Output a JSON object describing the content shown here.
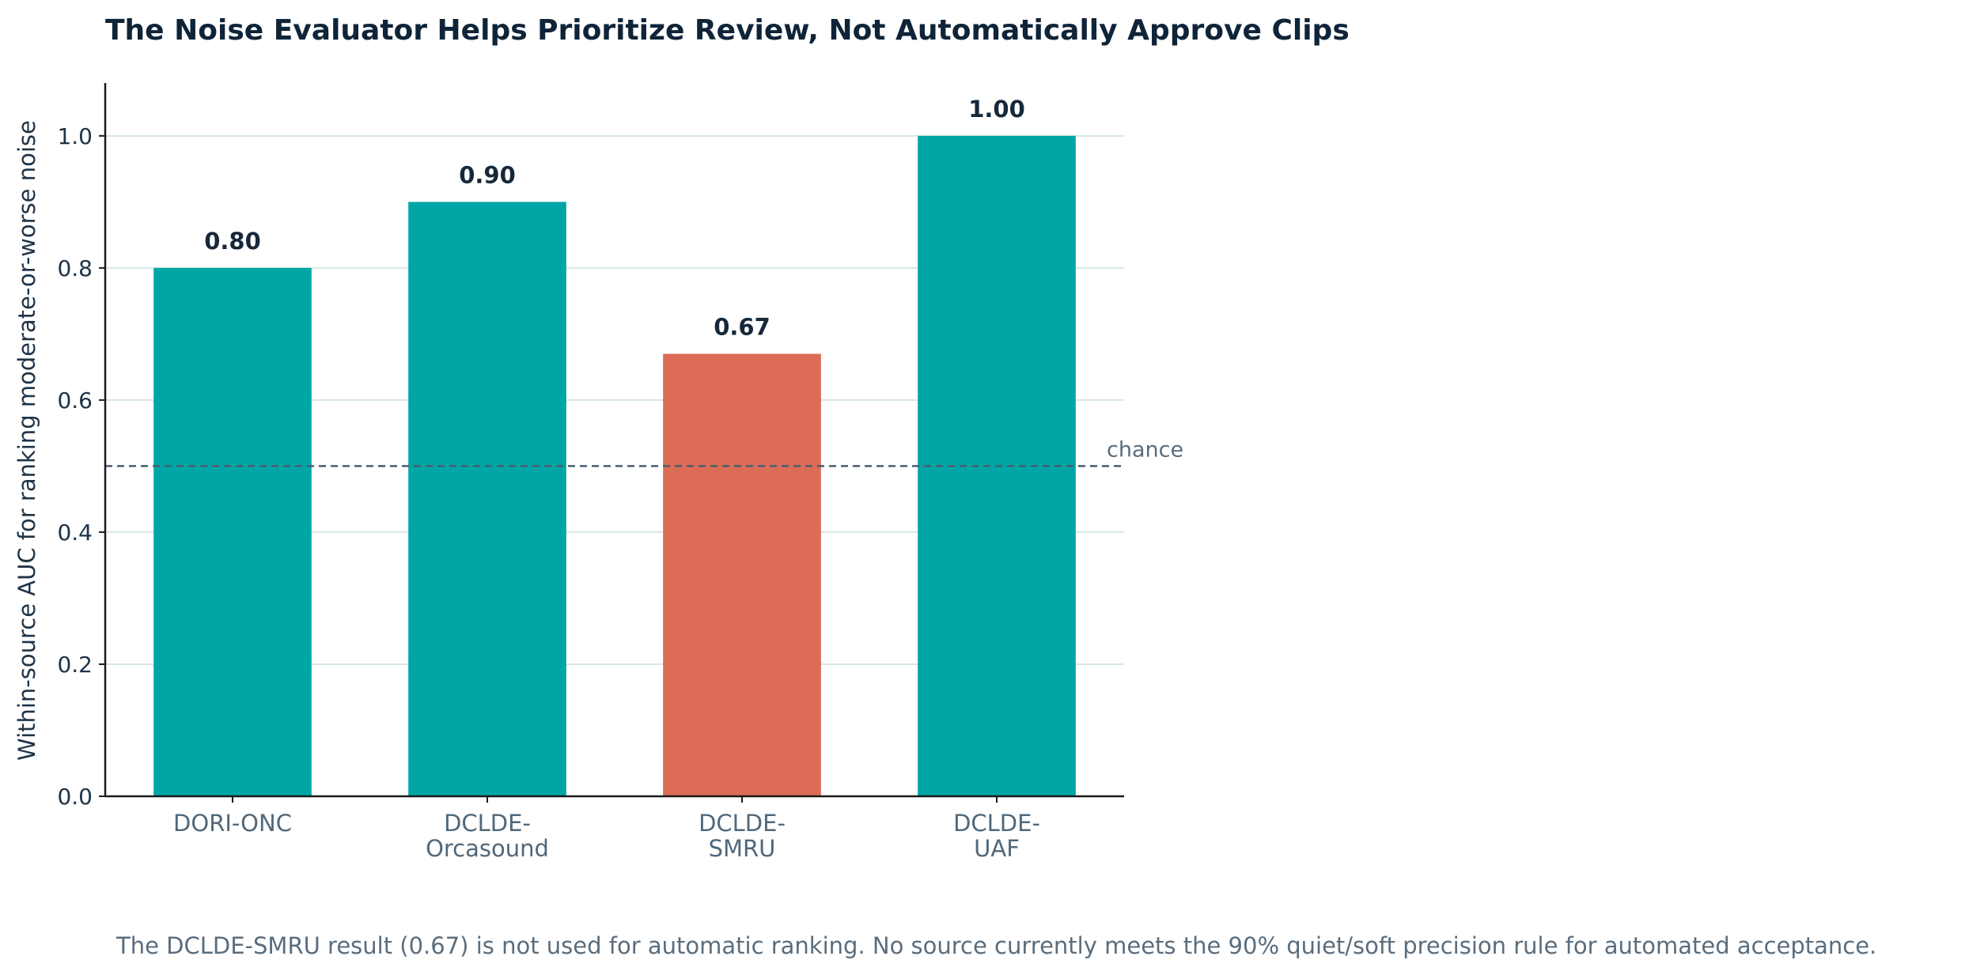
{
  "chart_data": {
    "type": "bar",
    "title": "The Noise Evaluator Helps Prioritize Review, Not Automatically Approve Clips",
    "ylabel": "Within-source AUC for ranking moderate-or-worse noise",
    "xlabel": "",
    "categories": [
      [
        "DORI-ONC"
      ],
      [
        "DCLDE-",
        "Orcasound"
      ],
      [
        "DCLDE-",
        "SMRU"
      ],
      [
        "DCLDE-",
        "UAF"
      ]
    ],
    "values": [
      0.8,
      0.9,
      0.67,
      1.0
    ],
    "value_labels": [
      "0.80",
      "0.90",
      "0.67",
      "1.00"
    ],
    "bar_colors": [
      "#00a6a6",
      "#00a6a6",
      "#dc6c56",
      "#00a6a6"
    ],
    "ylim": [
      0,
      1.08
    ],
    "yticks": [
      0.0,
      0.2,
      0.4,
      0.6,
      0.8,
      1.0
    ],
    "ytick_labels": [
      "0.0",
      "0.2",
      "0.4",
      "0.6",
      "0.8",
      "1.0"
    ],
    "grid": "y",
    "reference_line": {
      "value": 0.5,
      "label": "chance",
      "color": "#4a5d70"
    },
    "caption": "The DCLDE-SMRU result (0.67) is not used for automatic ranking. No source currently meets the 90% quiet/soft precision rule for automated acceptance."
  },
  "colors": {
    "grid": "#d6e6e6",
    "axis": "#1a1a1a"
  }
}
